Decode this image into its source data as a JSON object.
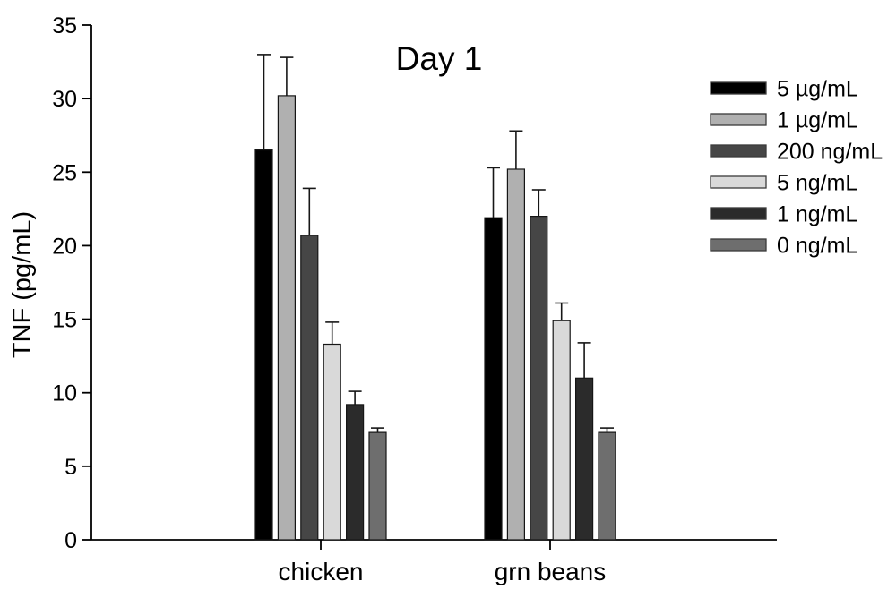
{
  "chart_data": {
    "type": "bar",
    "title": "Day 1",
    "ylabel": "TNF (pg/mL)",
    "xlabel": "",
    "ylim": [
      0,
      35
    ],
    "yticks": [
      0,
      5,
      10,
      15,
      20,
      25,
      30,
      35
    ],
    "grid": false,
    "legend_position": "upper-right",
    "error_bars": "upward only, capped",
    "axis_color": "#000000",
    "categories": [
      "chicken",
      "grn beans"
    ],
    "series": [
      {
        "name": "5 µg/mL",
        "color": "#000000",
        "values": [
          26.5,
          21.9
        ],
        "errors": [
          6.5,
          3.4
        ]
      },
      {
        "name": "1 µg/mL",
        "color": "#b0b0b0",
        "values": [
          30.2,
          25.2
        ],
        "errors": [
          2.6,
          2.6
        ]
      },
      {
        "name": "200 ng/mL",
        "color": "#464646",
        "values": [
          20.7,
          22.0
        ],
        "errors": [
          3.2,
          1.8
        ]
      },
      {
        "name": "5 ng/mL",
        "color": "#d9d9d9",
        "values": [
          13.3,
          14.9
        ],
        "errors": [
          1.5,
          1.2
        ]
      },
      {
        "name": "1 ng/mL",
        "color": "#2b2b2b",
        "values": [
          9.2,
          11.0
        ],
        "errors": [
          0.9,
          2.4
        ]
      },
      {
        "name": "0 ng/mL",
        "color": "#6e6e6e",
        "values": [
          7.3,
          7.3
        ],
        "errors": [
          0.3,
          0.3
        ]
      }
    ]
  }
}
